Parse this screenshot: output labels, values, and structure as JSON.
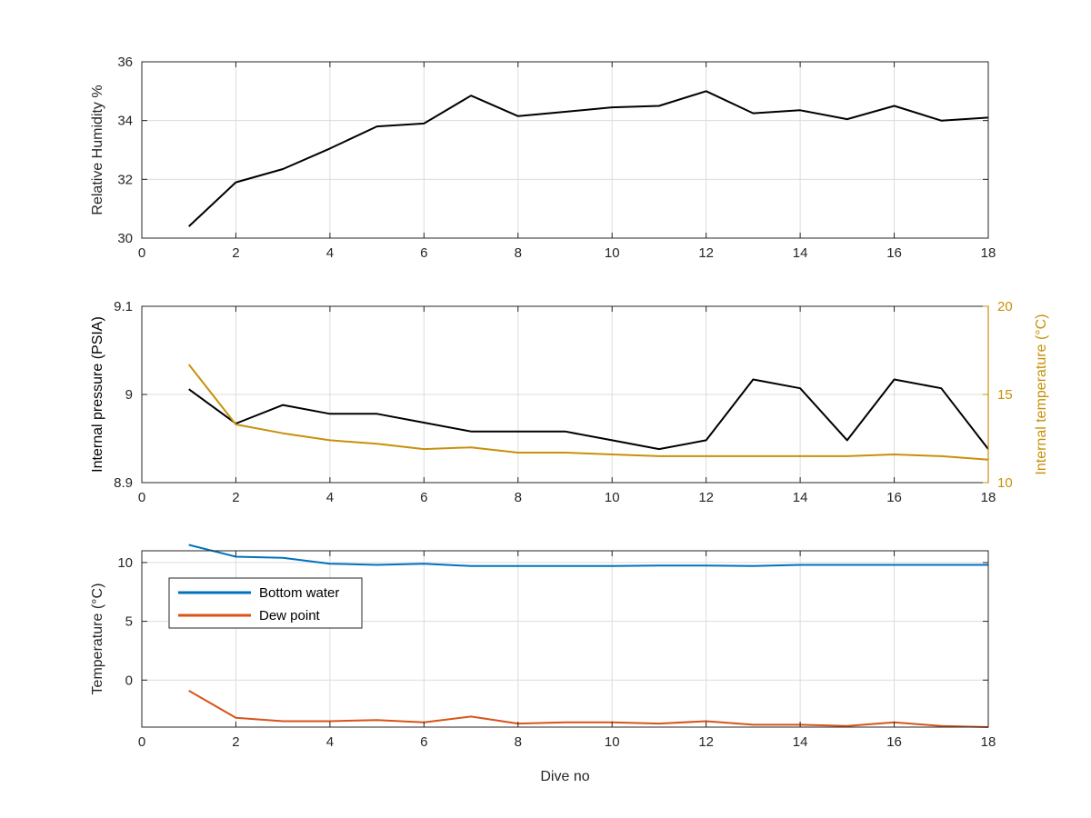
{
  "colors": {
    "black_series": "#000000",
    "internal_temp": "#c8900b",
    "bottom_water": "#0072bd",
    "dew_point": "#d95319",
    "axis": "#262626",
    "grid": "#dcdcdc"
  },
  "chart_data": [
    {
      "type": "line",
      "xlabel": "",
      "ylabel": "Relative Humidity %",
      "xlim": [
        0,
        18
      ],
      "ylim": [
        30,
        36
      ],
      "xticks": [
        "0",
        "2",
        "4",
        "6",
        "8",
        "10",
        "12",
        "14",
        "16",
        "18"
      ],
      "yticks": [
        "30",
        "32",
        "34",
        "36"
      ],
      "grid": true,
      "x": [
        1,
        2,
        3,
        4,
        5,
        6,
        7,
        8,
        9,
        10,
        11,
        12,
        13,
        14,
        15,
        16,
        17,
        18
      ],
      "series": [
        {
          "values": [
            30.4,
            31.9,
            32.35,
            33.05,
            33.8,
            33.9,
            34.85,
            34.15,
            34.3,
            34.45,
            34.5,
            35.0,
            34.25,
            34.35,
            34.05,
            34.5,
            34.0,
            34.1
          ]
        }
      ]
    },
    {
      "type": "line",
      "xlabel": "",
      "ylabel": "Internal pressure (PSIA)",
      "y2label": "Internal temperature (°C)",
      "xlim": [
        0,
        18
      ],
      "ylim": [
        8.9,
        9.1
      ],
      "y2lim": [
        10,
        20
      ],
      "xticks": [
        "0",
        "2",
        "4",
        "6",
        "8",
        "10",
        "12",
        "14",
        "16",
        "18"
      ],
      "yticks": [
        "8.9",
        "9",
        "9.1"
      ],
      "y2ticks": [
        "10",
        "15",
        "20"
      ],
      "grid": true,
      "x": [
        1,
        2,
        3,
        4,
        5,
        6,
        7,
        8,
        9,
        10,
        11,
        12,
        13,
        14,
        15,
        16,
        17,
        18
      ],
      "series": [
        {
          "axis": "left",
          "values": [
            9.006,
            8.967,
            8.988,
            8.978,
            8.978,
            8.968,
            8.958,
            8.958,
            8.958,
            8.948,
            8.938,
            8.948,
            9.017,
            9.007,
            8.948,
            9.017,
            9.007,
            8.938
          ]
        },
        {
          "axis": "right",
          "values": [
            16.7,
            13.3,
            12.8,
            12.4,
            12.2,
            11.9,
            12.0,
            11.7,
            11.7,
            11.6,
            11.5,
            11.5,
            11.5,
            11.5,
            11.5,
            11.6,
            11.5,
            11.3
          ]
        }
      ]
    },
    {
      "type": "line",
      "xlabel": "Dive no",
      "ylabel": "Temperature (°C)",
      "xlim": [
        0,
        18
      ],
      "ylim": [
        -4,
        11
      ],
      "xticks": [
        "0",
        "2",
        "4",
        "6",
        "8",
        "10",
        "12",
        "14",
        "16",
        "18"
      ],
      "yticks": [
        "0",
        "5",
        "10"
      ],
      "grid": true,
      "legend_position": "top-left",
      "x": [
        1,
        2,
        3,
        4,
        5,
        6,
        7,
        8,
        9,
        10,
        11,
        12,
        13,
        14,
        15,
        16,
        17,
        18
      ],
      "series": [
        {
          "name": "Bottom water",
          "values": [
            11.5,
            10.5,
            10.4,
            9.9,
            9.8,
            9.9,
            9.7,
            9.7,
            9.7,
            9.7,
            9.75,
            9.75,
            9.7,
            9.8,
            9.8,
            9.8,
            9.8,
            9.8
          ]
        },
        {
          "name": "Dew point",
          "values": [
            -0.9,
            -3.2,
            -3.5,
            -3.5,
            -3.4,
            -3.6,
            -3.1,
            -3.7,
            -3.6,
            -3.6,
            -3.7,
            -3.5,
            -3.8,
            -3.8,
            -3.9,
            -3.6,
            -3.9,
            -4.0
          ]
        }
      ]
    }
  ]
}
